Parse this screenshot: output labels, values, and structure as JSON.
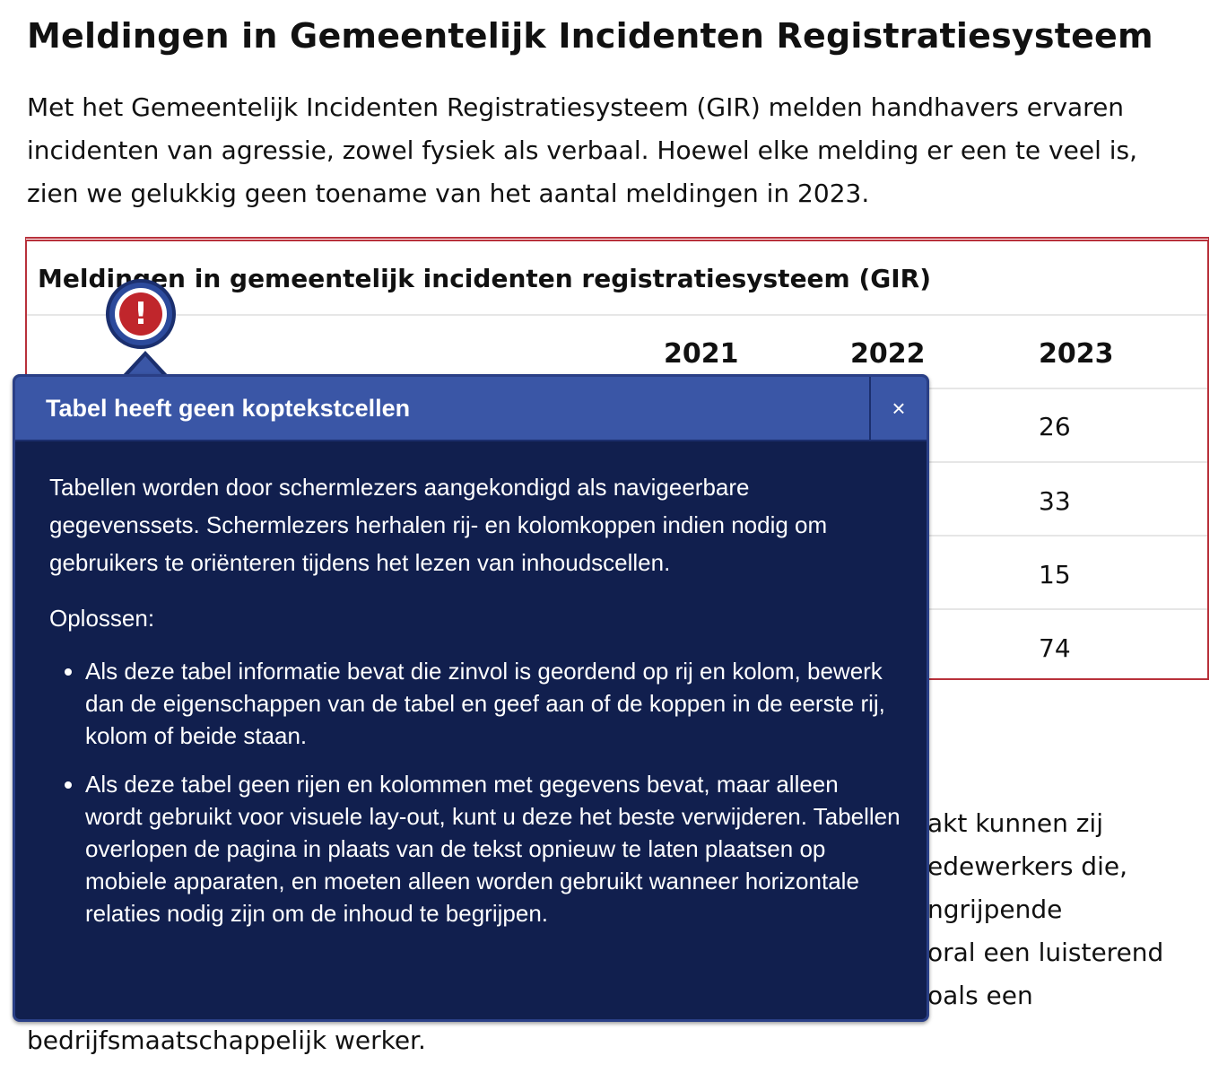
{
  "page": {
    "title": "Meldingen in Gemeentelijk Incidenten Registratiesysteem",
    "intro": "Met het Gemeentelijk Incidenten Registratiesysteem (GIR) melden handhavers ervaren incidenten van agressie, zowel fysiek als verbaal. Hoewel elke melding er een te veel is, zien we gelukkig geen toename van het aantal meldingen in 2023."
  },
  "table": {
    "caption": "Meldingen in gemeentelijk incidenten registratiesysteem (GIR)",
    "years": [
      "2021",
      "2022",
      "2023"
    ],
    "visible_2023_values": [
      "26",
      "33",
      "15",
      "74"
    ]
  },
  "below_text": {
    "lines": [
      "akt kunnen zij",
      "edewerkers die,",
      "ngrijpende",
      "oral een luisterend",
      "oals een",
      "bedrijfsmaatschappelijk werker."
    ]
  },
  "issue_marker": {
    "symbol": "!"
  },
  "issue_panel": {
    "title": "Tabel heeft geen koptekstcellen",
    "close_label": "×",
    "description": "Tabellen worden door schermlezers aangekondigd als navigeerbare gegevenssets. Schermlezers herhalen rij- en kolomkoppen indien nodig om gebruikers te oriënteren tijdens het lezen van inhoudscellen.",
    "fix_heading": "Oplossen:",
    "fix_items": [
      "Als deze tabel informatie bevat die zinvol is geordend op rij en kolom, bewerk dan de eigenschappen van de tabel en geef aan of de koppen in de eerste rij, kolom of beide staan.",
      "Als deze tabel geen rijen en kolommen met gegevens bevat, maar alleen wordt gebruikt voor visuele lay-out, kunt u deze het beste verwijderen. Tabellen overlopen de pagina in plaats van de tekst opnieuw te laten plaatsen op mobiele apparaten, en moeten alleen worden gebruikt wanneer horizontale relaties nodig zijn om de inhoud te begrijpen."
    ]
  },
  "colors": {
    "table_border": "#b8313b",
    "panel_background": "#111f4e",
    "panel_header": "#3a56a6",
    "marker_red": "#c0262c"
  }
}
